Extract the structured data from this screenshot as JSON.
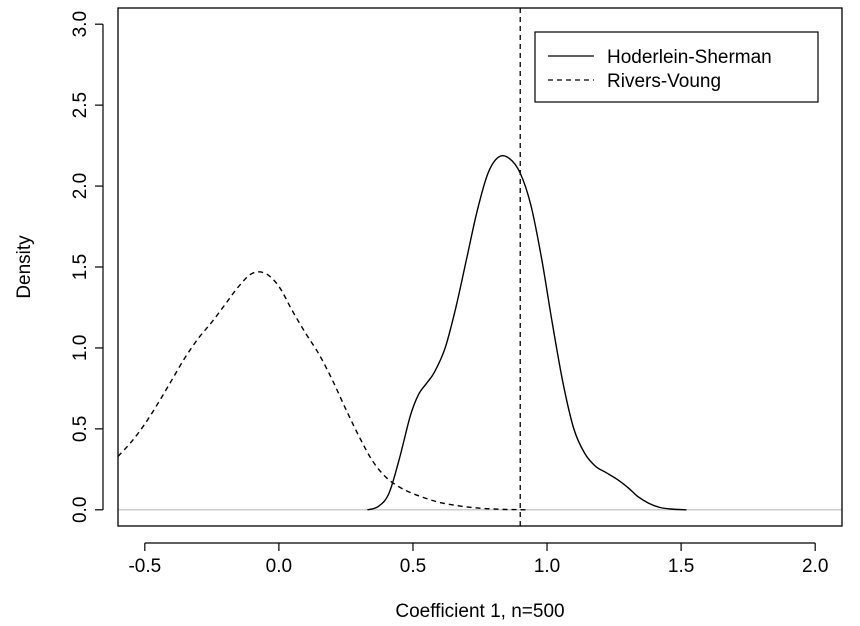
{
  "chart_data": {
    "type": "line",
    "title": "",
    "xlabel": "Coefficient 1,  n=500",
    "ylabel": "Density",
    "xlim": [
      -0.6,
      2.1
    ],
    "ylim": [
      -0.1,
      3.1
    ],
    "x_ticks": [
      "-0.5",
      "0.0",
      "0.5",
      "1.0",
      "1.5",
      "2.0"
    ],
    "y_ticks": [
      "0.0",
      "0.5",
      "1.0",
      "1.5",
      "2.0",
      "2.5",
      "3.0"
    ],
    "grid": false,
    "legend_position": "top-right",
    "baseline": 0,
    "vline": 0.9,
    "series": [
      {
        "name": "Hoderlein-Sherman",
        "style": "solid",
        "x": [
          0.33,
          0.37,
          0.41,
          0.45,
          0.49,
          0.52,
          0.55,
          0.58,
          0.62,
          0.66,
          0.7,
          0.74,
          0.78,
          0.82,
          0.86,
          0.9,
          0.94,
          0.98,
          1.02,
          1.06,
          1.1,
          1.14,
          1.18,
          1.22,
          1.26,
          1.3,
          1.34,
          1.38,
          1.42,
          1.46,
          1.52
        ],
        "y": [
          0.0,
          0.02,
          0.1,
          0.32,
          0.58,
          0.71,
          0.78,
          0.85,
          1.0,
          1.25,
          1.55,
          1.85,
          2.08,
          2.18,
          2.17,
          2.08,
          1.88,
          1.55,
          1.15,
          0.78,
          0.5,
          0.35,
          0.27,
          0.23,
          0.19,
          0.14,
          0.08,
          0.04,
          0.015,
          0.005,
          0.0
        ]
      },
      {
        "name": "Rivers-Voung",
        "style": "dashed",
        "x": [
          -0.6,
          -0.55,
          -0.5,
          -0.45,
          -0.4,
          -0.35,
          -0.3,
          -0.25,
          -0.2,
          -0.15,
          -0.1,
          -0.05,
          0.0,
          0.05,
          0.1,
          0.15,
          0.2,
          0.25,
          0.3,
          0.35,
          0.4,
          0.45,
          0.5,
          0.55,
          0.6,
          0.65,
          0.7,
          0.75,
          0.8,
          0.85,
          0.9,
          0.92
        ],
        "y": [
          0.33,
          0.42,
          0.53,
          0.66,
          0.8,
          0.94,
          1.06,
          1.16,
          1.27,
          1.38,
          1.46,
          1.46,
          1.38,
          1.23,
          1.09,
          0.96,
          0.8,
          0.62,
          0.45,
          0.3,
          0.2,
          0.14,
          0.1,
          0.07,
          0.045,
          0.03,
          0.018,
          0.01,
          0.005,
          0.002,
          0.001,
          0.0
        ]
      }
    ]
  }
}
